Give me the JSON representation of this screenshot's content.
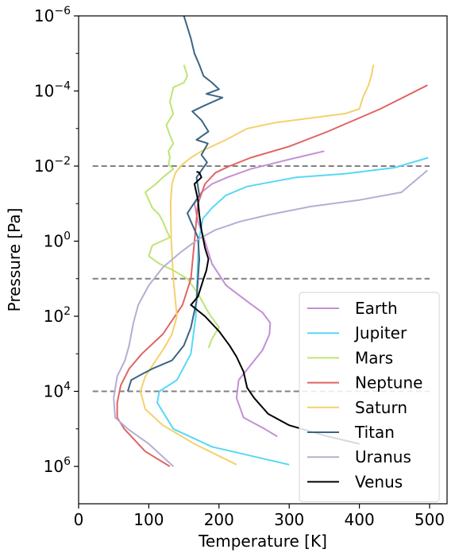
{
  "chart_data": {
    "type": "line",
    "title": "",
    "xlabel": "Temperature [K]",
    "ylabel": "Pressure [Pa]",
    "xlim": [
      0,
      510
    ],
    "ylim_exponent": [
      8,
      6
    ],
    "y_scale": "log",
    "grid": false,
    "legend_position": "lower right",
    "x_ticks": [
      {
        "value": 0,
        "label": "0"
      },
      {
        "value": 100,
        "label": "100"
      },
      {
        "value": 200,
        "label": "200"
      },
      {
        "value": 300,
        "label": "300"
      },
      {
        "value": 400,
        "label": "400"
      },
      {
        "value": 500,
        "label": "500"
      }
    ],
    "y_ticks": [
      {
        "exp": -6,
        "base": "10",
        "sup": "−6"
      },
      {
        "exp": -4,
        "base": "10",
        "sup": "−4"
      },
      {
        "exp": -2,
        "base": "10",
        "sup": "−2"
      },
      {
        "exp": 0,
        "base": "10",
        "sup": "0"
      },
      {
        "exp": 2,
        "base": "10",
        "sup": "2"
      },
      {
        "exp": 4,
        "base": "10",
        "sup": "4"
      },
      {
        "exp": 6,
        "base": "10",
        "sup": "6"
      }
    ],
    "reference_lines": [
      {
        "pressure": 0.01,
        "x_range": [
          20,
          500
        ],
        "color": "#808080",
        "style": "dashed"
      },
      {
        "pressure": 10,
        "x_range": [
          20,
          500
        ],
        "color": "#808080",
        "style": "dashed"
      },
      {
        "pressure": 10000,
        "x_range": [
          20,
          500
        ],
        "color": "#808080",
        "style": "dashed"
      }
    ],
    "series": [
      {
        "name": "Earth",
        "color": "#c390d4",
        "points": [
          [
            350,
            0.004
          ],
          [
            295,
            0.007
          ],
          [
            245,
            0.012
          ],
          [
            212,
            0.02
          ],
          [
            190,
            0.03
          ],
          [
            175,
            0.05
          ],
          [
            165,
            0.1
          ],
          [
            170,
            0.3
          ],
          [
            180,
            1.0
          ],
          [
            190,
            4.0
          ],
          [
            210,
            15
          ],
          [
            240,
            40
          ],
          [
            262,
            80
          ],
          [
            273,
            150
          ],
          [
            272,
            300
          ],
          [
            262,
            800
          ],
          [
            245,
            2000
          ],
          [
            228,
            5000
          ],
          [
            225,
            15000
          ],
          [
            235,
            50000
          ],
          [
            265,
            100000
          ],
          [
            283,
            160000
          ]
        ]
      },
      {
        "name": "Jupiter",
        "color": "#56d8f5",
        "points": [
          [
            498,
            0.006
          ],
          [
            450,
            0.011
          ],
          [
            380,
            0.016
          ],
          [
            310,
            0.02
          ],
          [
            240,
            0.035
          ],
          [
            210,
            0.06
          ],
          [
            190,
            0.13
          ],
          [
            177,
            0.25
          ],
          [
            171,
            1.0
          ],
          [
            169,
            10
          ],
          [
            167,
            100
          ],
          [
            160,
            1000
          ],
          [
            140,
            5000
          ],
          [
            115,
            10000
          ],
          [
            112,
            20000
          ],
          [
            135,
            100000
          ],
          [
            190,
            300000
          ],
          [
            300,
            900000
          ]
        ]
      },
      {
        "name": "Mars",
        "color": "#bde575",
        "points": [
          [
            150,
            2e-05
          ],
          [
            155,
            4e-05
          ],
          [
            150,
            6e-05
          ],
          [
            135,
            8e-05
          ],
          [
            130,
            0.0002
          ],
          [
            135,
            0.0004
          ],
          [
            125,
            0.0008
          ],
          [
            130,
            0.0015
          ],
          [
            135,
            0.0025
          ],
          [
            128,
            0.004
          ],
          [
            130,
            0.006
          ],
          [
            128,
            0.009
          ],
          [
            135,
            0.012
          ],
          [
            120,
            0.02
          ],
          [
            110,
            0.03
          ],
          [
            95,
            0.05
          ],
          [
            100,
            0.08
          ],
          [
            105,
            0.13
          ],
          [
            115,
            0.2
          ],
          [
            120,
            0.3
          ],
          [
            125,
            0.5
          ],
          [
            130,
            0.8
          ],
          [
            105,
            1.3
          ],
          [
            100,
            2.5
          ],
          [
            115,
            4.0
          ],
          [
            135,
            6.0
          ],
          [
            155,
            10
          ],
          [
            170,
            25
          ],
          [
            185,
            80
          ],
          [
            200,
            200
          ],
          [
            190,
            400
          ],
          [
            185,
            700
          ]
        ]
      },
      {
        "name": "Neptune",
        "color": "#e06464",
        "points": [
          [
            497,
            7e-05
          ],
          [
            430,
            0.0003
          ],
          [
            355,
            0.0012
          ],
          [
            300,
            0.003
          ],
          [
            245,
            0.006
          ],
          [
            215,
            0.01
          ],
          [
            195,
            0.015
          ],
          [
            180,
            0.03
          ],
          [
            170,
            0.1
          ],
          [
            165,
            1.0
          ],
          [
            160,
            10
          ],
          [
            148,
            50
          ],
          [
            120,
            300
          ],
          [
            90,
            1000
          ],
          [
            72,
            2500
          ],
          [
            60,
            7000
          ],
          [
            55,
            20000
          ],
          [
            55,
            50000
          ],
          [
            65,
            100000
          ],
          [
            95,
            400000
          ],
          [
            130,
            1000000
          ]
        ]
      },
      {
        "name": "Saturn",
        "color": "#f5d06c",
        "points": [
          [
            420,
            2e-05
          ],
          [
            417,
            4e-05
          ],
          [
            413,
            7e-05
          ],
          [
            405,
            0.00015
          ],
          [
            400,
            0.0003
          ],
          [
            380,
            0.0004
          ],
          [
            340,
            0.0005
          ],
          [
            280,
            0.0007
          ],
          [
            240,
            0.001
          ],
          [
            210,
            0.002
          ],
          [
            175,
            0.004
          ],
          [
            160,
            0.006
          ],
          [
            148,
            0.009
          ],
          [
            138,
            0.015
          ],
          [
            133,
            0.03
          ],
          [
            131,
            0.1
          ],
          [
            132,
            1.0
          ],
          [
            135,
            10
          ],
          [
            140,
            100
          ],
          [
            133,
            300
          ],
          [
            122,
            700
          ],
          [
            110,
            1500
          ],
          [
            95,
            4000
          ],
          [
            88,
            10000
          ],
          [
            95,
            30000
          ],
          [
            120,
            80000
          ],
          [
            165,
            250000
          ],
          [
            225,
            900000
          ]
        ]
      },
      {
        "name": "Titan",
        "color": "#3b6584",
        "points": [
          [
            150,
            1e-06
          ],
          [
            160,
            4e-06
          ],
          [
            165,
            1e-05
          ],
          [
            172,
            2e-05
          ],
          [
            178,
            4e-05
          ],
          [
            190,
            6e-05
          ],
          [
            200,
            9e-05
          ],
          [
            182,
            0.00012
          ],
          [
            205,
            0.00015
          ],
          [
            178,
            0.00025
          ],
          [
            162,
            0.00035
          ],
          [
            175,
            0.0006
          ],
          [
            185,
            0.0012
          ],
          [
            168,
            0.002
          ],
          [
            184,
            0.0025
          ],
          [
            175,
            0.005
          ],
          [
            183,
            0.008
          ],
          [
            168,
            0.02
          ],
          [
            172,
            0.06
          ],
          [
            155,
            0.18
          ],
          [
            160,
            0.3
          ],
          [
            170,
            0.8
          ],
          [
            172,
            3.0
          ],
          [
            170,
            10
          ],
          [
            168,
            40
          ],
          [
            160,
            200
          ],
          [
            150,
            600
          ],
          [
            133,
            1500
          ],
          [
            105,
            2500
          ],
          [
            90,
            3500
          ],
          [
            75,
            5000
          ],
          [
            70,
            10000
          ]
        ]
      },
      {
        "name": "Uranus",
        "color": "#b3afd2",
        "points": [
          [
            497,
            0.013
          ],
          [
            460,
            0.05
          ],
          [
            400,
            0.08
          ],
          [
            330,
            0.12
          ],
          [
            270,
            0.2
          ],
          [
            230,
            0.3
          ],
          [
            195,
            0.5
          ],
          [
            170,
            0.9
          ],
          [
            145,
            2.0
          ],
          [
            120,
            5.0
          ],
          [
            100,
            15
          ],
          [
            85,
            50
          ],
          [
            78,
            150
          ],
          [
            72,
            600
          ],
          [
            66,
            1500
          ],
          [
            55,
            4000
          ],
          [
            50,
            15000
          ],
          [
            52,
            50000
          ],
          [
            70,
            100000
          ],
          [
            100,
            250000
          ],
          [
            135,
            1000000
          ]
        ]
      },
      {
        "name": "Venus",
        "color": "#000000",
        "points": [
          [
            168,
            0.014
          ],
          [
            172,
            0.015
          ],
          [
            175,
            0.02
          ],
          [
            165,
            0.03
          ],
          [
            170,
            0.08
          ],
          [
            172,
            0.2
          ],
          [
            175,
            0.5
          ],
          [
            180,
            1.5
          ],
          [
            185,
            3.0
          ],
          [
            182,
            6.0
          ],
          [
            178,
            10
          ],
          [
            170,
            30
          ],
          [
            160,
            50
          ],
          [
            180,
            100
          ],
          [
            200,
            250
          ],
          [
            215,
            600
          ],
          [
            225,
            1200
          ],
          [
            235,
            3000
          ],
          [
            240,
            8000
          ],
          [
            250,
            15000
          ],
          [
            270,
            40000
          ],
          [
            300,
            80000
          ],
          [
            350,
            150000
          ],
          [
            400,
            250000
          ]
        ]
      }
    ]
  }
}
